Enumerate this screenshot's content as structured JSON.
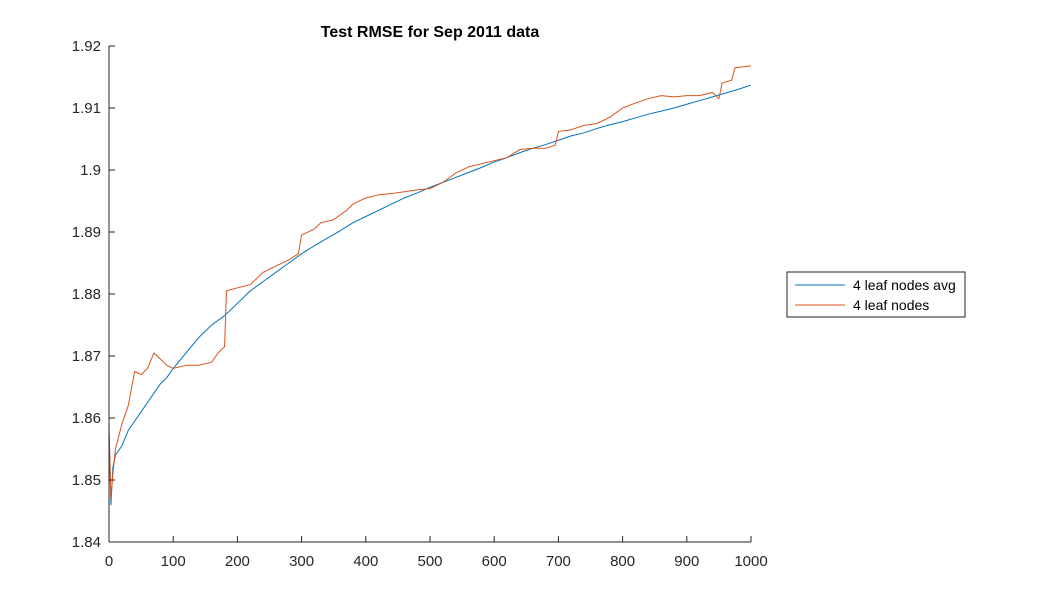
{
  "chart_data": {
    "type": "line",
    "title": "Test RMSE for Sep 2011 data",
    "xlabel": "",
    "ylabel": "",
    "xlim": [
      0,
      1000
    ],
    "ylim": [
      1.84,
      1.92
    ],
    "x_ticks": [
      "0",
      "100",
      "200",
      "300",
      "400",
      "500",
      "600",
      "700",
      "800",
      "900",
      "1000"
    ],
    "y_ticks": [
      "1.84",
      "1.85",
      "1.86",
      "1.87",
      "1.88",
      "1.89",
      "1.9",
      "1.91",
      "1.92"
    ],
    "grid": false,
    "legend_position": "outside-right",
    "series": [
      {
        "name": "4 leaf nodes avg",
        "color": "#0072BD",
        "points": [
          [
            0,
            1.858
          ],
          [
            3,
            1.846
          ],
          [
            6,
            1.852
          ],
          [
            10,
            1.854
          ],
          [
            20,
            1.8555
          ],
          [
            30,
            1.858
          ],
          [
            40,
            1.8595
          ],
          [
            50,
            1.861
          ],
          [
            60,
            1.8625
          ],
          [
            70,
            1.864
          ],
          [
            80,
            1.8655
          ],
          [
            90,
            1.8665
          ],
          [
            100,
            1.868
          ],
          [
            120,
            1.8705
          ],
          [
            140,
            1.873
          ],
          [
            160,
            1.875
          ],
          [
            180,
            1.8765
          ],
          [
            200,
            1.8785
          ],
          [
            220,
            1.8805
          ],
          [
            240,
            1.882
          ],
          [
            260,
            1.8835
          ],
          [
            280,
            1.885
          ],
          [
            300,
            1.8865
          ],
          [
            320,
            1.8878
          ],
          [
            340,
            1.889
          ],
          [
            360,
            1.8902
          ],
          [
            380,
            1.8915
          ],
          [
            400,
            1.8925
          ],
          [
            420,
            1.8935
          ],
          [
            440,
            1.8945
          ],
          [
            460,
            1.8955
          ],
          [
            480,
            1.8963
          ],
          [
            500,
            1.8972
          ],
          [
            520,
            1.898
          ],
          [
            540,
            1.8988
          ],
          [
            560,
            1.8996
          ],
          [
            580,
            1.9004
          ],
          [
            600,
            1.9013
          ],
          [
            620,
            1.902
          ],
          [
            640,
            1.9028
          ],
          [
            660,
            1.9035
          ],
          [
            680,
            1.9041
          ],
          [
            700,
            1.9048
          ],
          [
            720,
            1.9055
          ],
          [
            740,
            1.906
          ],
          [
            760,
            1.9067
          ],
          [
            780,
            1.9073
          ],
          [
            800,
            1.9078
          ],
          [
            820,
            1.9084
          ],
          [
            840,
            1.909
          ],
          [
            860,
            1.9095
          ],
          [
            880,
            1.91
          ],
          [
            900,
            1.9106
          ],
          [
            920,
            1.9112
          ],
          [
            940,
            1.9118
          ],
          [
            960,
            1.9124
          ],
          [
            980,
            1.913
          ],
          [
            1000,
            1.9137
          ]
        ]
      },
      {
        "name": "4 leaf nodes",
        "color": "#D95319",
        "points": [
          [
            0,
            1.8585
          ],
          [
            3,
            1.847
          ],
          [
            6,
            1.851
          ],
          [
            10,
            1.855
          ],
          [
            20,
            1.859
          ],
          [
            30,
            1.862
          ],
          [
            40,
            1.8675
          ],
          [
            50,
            1.867
          ],
          [
            60,
            1.868
          ],
          [
            70,
            1.8705
          ],
          [
            80,
            1.8695
          ],
          [
            90,
            1.8685
          ],
          [
            100,
            1.868
          ],
          [
            120,
            1.8685
          ],
          [
            140,
            1.8685
          ],
          [
            160,
            1.869
          ],
          [
            170,
            1.8705
          ],
          [
            180,
            1.8715
          ],
          [
            183,
            1.8805
          ],
          [
            200,
            1.881
          ],
          [
            220,
            1.8815
          ],
          [
            240,
            1.8835
          ],
          [
            260,
            1.8845
          ],
          [
            280,
            1.8855
          ],
          [
            295,
            1.8865
          ],
          [
            300,
            1.8895
          ],
          [
            320,
            1.8905
          ],
          [
            330,
            1.8915
          ],
          [
            350,
            1.892
          ],
          [
            370,
            1.8935
          ],
          [
            380,
            1.8945
          ],
          [
            400,
            1.8955
          ],
          [
            420,
            1.896
          ],
          [
            440,
            1.8962
          ],
          [
            460,
            1.8965
          ],
          [
            480,
            1.8968
          ],
          [
            500,
            1.897
          ],
          [
            520,
            1.898
          ],
          [
            540,
            1.8995
          ],
          [
            560,
            1.9005
          ],
          [
            580,
            1.901
          ],
          [
            600,
            1.9015
          ],
          [
            620,
            1.902
          ],
          [
            640,
            1.9033
          ],
          [
            660,
            1.9035
          ],
          [
            680,
            1.9035
          ],
          [
            695,
            1.904
          ],
          [
            700,
            1.9062
          ],
          [
            720,
            1.9065
          ],
          [
            740,
            1.9072
          ],
          [
            760,
            1.9075
          ],
          [
            780,
            1.9085
          ],
          [
            800,
            1.91
          ],
          [
            820,
            1.9108
          ],
          [
            840,
            1.9115
          ],
          [
            860,
            1.912
          ],
          [
            880,
            1.9118
          ],
          [
            900,
            1.912
          ],
          [
            920,
            1.912
          ],
          [
            940,
            1.9125
          ],
          [
            950,
            1.9115
          ],
          [
            955,
            1.914
          ],
          [
            970,
            1.9145
          ],
          [
            975,
            1.9165
          ],
          [
            1000,
            1.9168
          ]
        ]
      }
    ]
  }
}
